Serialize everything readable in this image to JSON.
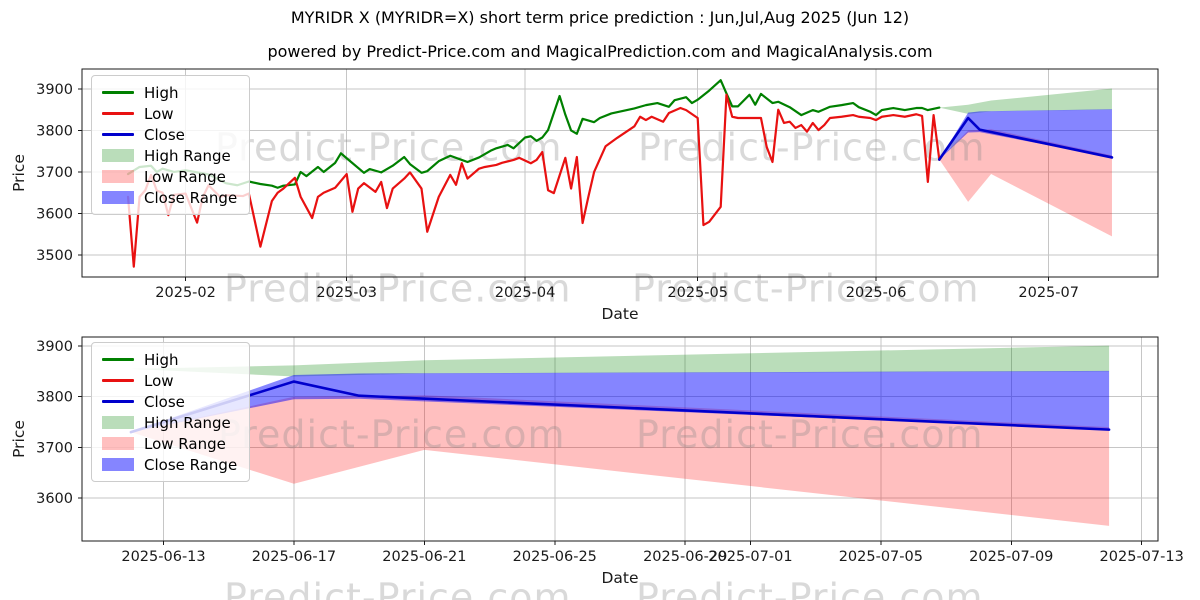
{
  "figure": {
    "title": "MYRIDR X (MYRIDR=X) short term price prediction : Jun,Jul,Aug 2025 (Jun 12)",
    "subtitle": "powered by Predict-Price.com and MagicalPrediction.com and MagicalAnalysis.com",
    "watermark": "Predict-Price.com"
  },
  "colors": {
    "high": "#008000",
    "low": "#e81111",
    "close": "#0000cc",
    "high_range": "rgba(0,128,0,0.27)",
    "low_range": "rgba(255,0,0,0.25)",
    "close_range": "rgba(0,0,255,0.48)",
    "grid": "#c6c6c6",
    "spine": "#1a1a1a",
    "tick_text": "#1a1a1a",
    "watermark": "#8a8a8a"
  },
  "legend": [
    {
      "label": "High",
      "swatch": "line",
      "color_key": "high"
    },
    {
      "label": "Low",
      "swatch": "line",
      "color_key": "low"
    },
    {
      "label": "Close",
      "swatch": "line",
      "color_key": "close"
    },
    {
      "label": "High Range",
      "swatch": "patch",
      "color_key": "high_range"
    },
    {
      "label": "Low Range",
      "swatch": "patch",
      "color_key": "low_range"
    },
    {
      "label": "Close Range",
      "swatch": "patch",
      "color_key": "close_range"
    }
  ],
  "chart_data": [
    {
      "type": "line",
      "xlabel": "Date",
      "ylabel": "Price",
      "x_range": [
        "2025-01-14",
        "2025-07-20"
      ],
      "y_range": [
        3447,
        3948
      ],
      "y_ticks": [
        3500,
        3600,
        3700,
        3800,
        3900
      ],
      "x_ticks": [
        {
          "date": "2025-02-01",
          "label": "2025-02"
        },
        {
          "date": "2025-03-01",
          "label": "2025-03"
        },
        {
          "date": "2025-04-01",
          "label": "2025-04"
        },
        {
          "date": "2025-05-01",
          "label": "2025-05"
        },
        {
          "date": "2025-06-01",
          "label": "2025-06"
        },
        {
          "date": "2025-07-01",
          "label": "2025-07"
        }
      ],
      "series": [
        {
          "name": "High",
          "color_key": "high",
          "width": 2.2,
          "dates": [
            "2025-01-22",
            "2025-01-24",
            "2025-01-26",
            "2025-01-27",
            "2025-01-28",
            "2025-01-30",
            "2025-02-01",
            "2025-02-03",
            "2025-02-05",
            "2025-02-08",
            "2025-02-10",
            "2025-02-12",
            "2025-02-14",
            "2025-02-16",
            "2025-02-17",
            "2025-02-18",
            "2025-02-20",
            "2025-02-21",
            "2025-02-22",
            "2025-02-24",
            "2025-02-25",
            "2025-02-27",
            "2025-02-28",
            "2025-03-01",
            "2025-03-04",
            "2025-03-05",
            "2025-03-07",
            "2025-03-09",
            "2025-03-11",
            "2025-03-12",
            "2025-03-14",
            "2025-03-15",
            "2025-03-17",
            "2025-03-19",
            "2025-03-21",
            "2025-03-22",
            "2025-03-24",
            "2025-03-26",
            "2025-03-27",
            "2025-03-29",
            "2025-03-30",
            "2025-04-01",
            "2025-04-02",
            "2025-04-03",
            "2025-04-04",
            "2025-04-05",
            "2025-04-07",
            "2025-04-08",
            "2025-04-09",
            "2025-04-10",
            "2025-04-11",
            "2025-04-13",
            "2025-04-14",
            "2025-04-16",
            "2025-04-18",
            "2025-04-20",
            "2025-04-22",
            "2025-04-24",
            "2025-04-26",
            "2025-04-27",
            "2025-04-29",
            "2025-04-30",
            "2025-05-01",
            "2025-05-03",
            "2025-05-05",
            "2025-05-06",
            "2025-05-07",
            "2025-05-08",
            "2025-05-10",
            "2025-05-11",
            "2025-05-12",
            "2025-05-14",
            "2025-05-15",
            "2025-05-17",
            "2025-05-19",
            "2025-05-21",
            "2025-05-22",
            "2025-05-24",
            "2025-05-26",
            "2025-05-28",
            "2025-05-29",
            "2025-05-31",
            "2025-06-01",
            "2025-06-02",
            "2025-06-04",
            "2025-06-06",
            "2025-06-08",
            "2025-06-09",
            "2025-06-10",
            "2025-06-12"
          ],
          "values": [
            3695,
            3712,
            3715,
            3700,
            3708,
            3700,
            3704,
            3699,
            3694,
            3673,
            3668,
            3677,
            3671,
            3667,
            3662,
            3667,
            3670,
            3700,
            3690,
            3712,
            3700,
            3722,
            3745,
            3733,
            3698,
            3707,
            3699,
            3715,
            3736,
            3719,
            3698,
            3702,
            3726,
            3739,
            3729,
            3724,
            3735,
            3751,
            3757,
            3765,
            3757,
            3783,
            3786,
            3775,
            3783,
            3801,
            3883,
            3838,
            3800,
            3792,
            3828,
            3820,
            3830,
            3841,
            3847,
            3853,
            3861,
            3866,
            3857,
            3873,
            3880,
            3866,
            3874,
            3896,
            3921,
            3889,
            3858,
            3858,
            3886,
            3862,
            3888,
            3866,
            3869,
            3856,
            3837,
            3849,
            3845,
            3857,
            3861,
            3866,
            3856,
            3845,
            3837,
            3849,
            3854,
            3849,
            3854,
            3854,
            3849,
            3855
          ]
        },
        {
          "name": "Low",
          "color_key": "low",
          "width": 2.2,
          "dates": [
            "2025-01-22",
            "2025-01-23",
            "2025-01-24",
            "2025-01-25",
            "2025-01-26",
            "2025-01-27",
            "2025-01-28",
            "2025-01-29",
            "2025-01-30",
            "2025-02-01",
            "2025-02-03",
            "2025-02-04",
            "2025-02-05",
            "2025-02-07",
            "2025-02-08",
            "2025-02-11",
            "2025-02-12",
            "2025-02-14",
            "2025-02-16",
            "2025-02-17",
            "2025-02-18",
            "2025-02-20",
            "2025-02-21",
            "2025-02-23",
            "2025-02-24",
            "2025-02-25",
            "2025-02-27",
            "2025-03-01",
            "2025-03-02",
            "2025-03-03",
            "2025-03-04",
            "2025-03-06",
            "2025-03-07",
            "2025-03-08",
            "2025-03-09",
            "2025-03-11",
            "2025-03-12",
            "2025-03-14",
            "2025-03-15",
            "2025-03-17",
            "2025-03-19",
            "2025-03-20",
            "2025-03-21",
            "2025-03-22",
            "2025-03-24",
            "2025-03-25",
            "2025-03-27",
            "2025-03-28",
            "2025-03-30",
            "2025-03-31",
            "2025-04-02",
            "2025-04-03",
            "2025-04-04",
            "2025-04-05",
            "2025-04-06",
            "2025-04-08",
            "2025-04-09",
            "2025-04-10",
            "2025-04-11",
            "2025-04-12",
            "2025-04-13",
            "2025-04-15",
            "2025-04-17",
            "2025-04-20",
            "2025-04-21",
            "2025-04-22",
            "2025-04-23",
            "2025-04-25",
            "2025-04-26",
            "2025-04-28",
            "2025-04-29",
            "2025-05-01",
            "2025-05-02",
            "2025-05-03",
            "2025-05-05",
            "2025-05-06",
            "2025-05-07",
            "2025-05-08",
            "2025-05-11",
            "2025-05-12",
            "2025-05-13",
            "2025-05-14",
            "2025-05-15",
            "2025-05-16",
            "2025-05-17",
            "2025-05-18",
            "2025-05-19",
            "2025-05-20",
            "2025-05-21",
            "2025-05-22",
            "2025-05-23",
            "2025-05-24",
            "2025-05-26",
            "2025-05-28",
            "2025-05-29",
            "2025-05-31",
            "2025-06-01",
            "2025-06-02",
            "2025-06-04",
            "2025-06-06",
            "2025-06-08",
            "2025-06-09",
            "2025-06-10",
            "2025-06-11",
            "2025-06-12"
          ],
          "values": [
            3640,
            3472,
            3640,
            3656,
            3693,
            3655,
            3650,
            3596,
            3645,
            3648,
            3578,
            3640,
            3668,
            3640,
            3644,
            3642,
            3648,
            3520,
            3630,
            3650,
            3660,
            3686,
            3640,
            3589,
            3640,
            3650,
            3662,
            3695,
            3604,
            3660,
            3673,
            3652,
            3676,
            3613,
            3660,
            3684,
            3699,
            3660,
            3556,
            3640,
            3693,
            3669,
            3721,
            3684,
            3708,
            3712,
            3717,
            3722,
            3729,
            3734,
            3721,
            3729,
            3748,
            3656,
            3649,
            3734,
            3660,
            3736,
            3577,
            3640,
            3700,
            3762,
            3782,
            3810,
            3833,
            3825,
            3833,
            3821,
            3842,
            3854,
            3849,
            3830,
            3572,
            3580,
            3616,
            3886,
            3833,
            3830,
            3830,
            3830,
            3760,
            3724,
            3850,
            3818,
            3821,
            3806,
            3813,
            3797,
            3818,
            3801,
            3813,
            3830,
            3833,
            3837,
            3833,
            3830,
            3825,
            3833,
            3837,
            3833,
            3839,
            3835,
            3676,
            3837,
            3729
          ]
        },
        {
          "name": "Close",
          "color_key": "close",
          "width": 2.6,
          "dates": [
            "2025-06-12",
            "2025-06-17",
            "2025-06-19",
            "2025-07-12"
          ],
          "values": [
            3730,
            3830,
            3802,
            3735
          ]
        }
      ],
      "bands": [
        {
          "name": "High Range",
          "color_key": "high_range",
          "dates": [
            "2025-06-12",
            "2025-06-17",
            "2025-06-21",
            "2025-07-12"
          ],
          "lower": [
            3855,
            3840,
            3846,
            3850
          ],
          "upper": [
            3855,
            3862,
            3872,
            3901
          ]
        },
        {
          "name": "Low Range",
          "color_key": "low_range",
          "dates": [
            "2025-06-12",
            "2025-06-17",
            "2025-06-21",
            "2025-07-12"
          ],
          "lower": [
            3730,
            3628,
            3695,
            3545
          ],
          "upper": [
            3730,
            3800,
            3803,
            3740
          ]
        },
        {
          "name": "Close Range",
          "color_key": "close_range",
          "dates": [
            "2025-06-12",
            "2025-06-17",
            "2025-06-19",
            "2025-07-12"
          ],
          "lower": [
            3730,
            3795,
            3796,
            3735
          ],
          "upper": [
            3730,
            3843,
            3846,
            3851
          ]
        }
      ]
    },
    {
      "type": "line",
      "xlabel": "Date",
      "ylabel": "Price",
      "x_range": [
        "2025-06-10T12:00:00",
        "2025-07-13T12:00:00"
      ],
      "y_range": [
        3515,
        3918
      ],
      "y_ticks": [
        3600,
        3700,
        3800,
        3900
      ],
      "x_ticks": [
        {
          "date": "2025-06-13",
          "label": "2025-06-13"
        },
        {
          "date": "2025-06-17",
          "label": "2025-06-17"
        },
        {
          "date": "2025-06-21",
          "label": "2025-06-21"
        },
        {
          "date": "2025-06-25",
          "label": "2025-06-25"
        },
        {
          "date": "2025-06-29",
          "label": "2025-06-29"
        },
        {
          "date": "2025-07-01",
          "label": "2025-07-01"
        },
        {
          "date": "2025-07-05",
          "label": "2025-07-05"
        },
        {
          "date": "2025-07-09",
          "label": "2025-07-09"
        },
        {
          "date": "2025-07-13",
          "label": "2025-07-13"
        }
      ],
      "series": [
        {
          "name": "Close",
          "color_key": "close",
          "width": 2.6,
          "dates": [
            "2025-06-12",
            "2025-06-17",
            "2025-06-19",
            "2025-07-12"
          ],
          "values": [
            3730,
            3830,
            3802,
            3735
          ]
        }
      ],
      "bands": [
        {
          "name": "High Range",
          "color_key": "high_range",
          "dates": [
            "2025-06-12",
            "2025-06-17",
            "2025-06-21",
            "2025-07-12"
          ],
          "lower": [
            3855,
            3840,
            3846,
            3850
          ],
          "upper": [
            3855,
            3862,
            3872,
            3901
          ]
        },
        {
          "name": "Low Range",
          "color_key": "low_range",
          "dates": [
            "2025-06-12",
            "2025-06-17",
            "2025-06-21",
            "2025-07-12"
          ],
          "lower": [
            3730,
            3628,
            3695,
            3545
          ],
          "upper": [
            3730,
            3800,
            3803,
            3740
          ]
        },
        {
          "name": "Close Range",
          "color_key": "close_range",
          "dates": [
            "2025-06-12",
            "2025-06-17",
            "2025-06-19",
            "2025-07-12"
          ],
          "lower": [
            3730,
            3795,
            3796,
            3735
          ],
          "upper": [
            3730,
            3843,
            3846,
            3851
          ]
        }
      ]
    }
  ]
}
